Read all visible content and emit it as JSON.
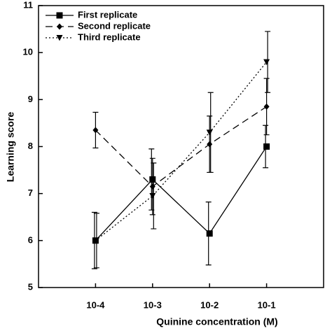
{
  "chart_data": {
    "type": "line",
    "x_label": "Quinine concentration (M)",
    "y_label": "Learning score",
    "categories": [
      "10-4",
      "10-3",
      "10-2",
      "10-1"
    ],
    "ylim": [
      5,
      11
    ],
    "yticks": [
      5,
      6,
      7,
      8,
      9,
      10,
      11
    ],
    "legend": "upper left",
    "series": [
      {
        "name": "First replicate",
        "color": "#000000",
        "line_style": "solid",
        "marker": "square",
        "values": [
          6.0,
          7.3,
          6.15,
          8.0
        ],
        "errors": [
          0.6,
          0.65,
          0.67,
          0.45
        ]
      },
      {
        "name": "Second replicate",
        "color": "#000000",
        "line_style": "dashed",
        "marker": "diamond",
        "values": [
          8.35,
          7.15,
          8.05,
          8.85
        ],
        "errors": [
          0.38,
          0.6,
          0.6,
          0.6
        ]
      },
      {
        "name": "Third replicate",
        "color": "#000000",
        "line_style": "dotted",
        "marker": "triangle-down",
        "values": [
          6.0,
          6.95,
          8.3,
          9.8
        ],
        "errors": [
          0.58,
          0.7,
          0.85,
          0.65
        ]
      }
    ]
  }
}
